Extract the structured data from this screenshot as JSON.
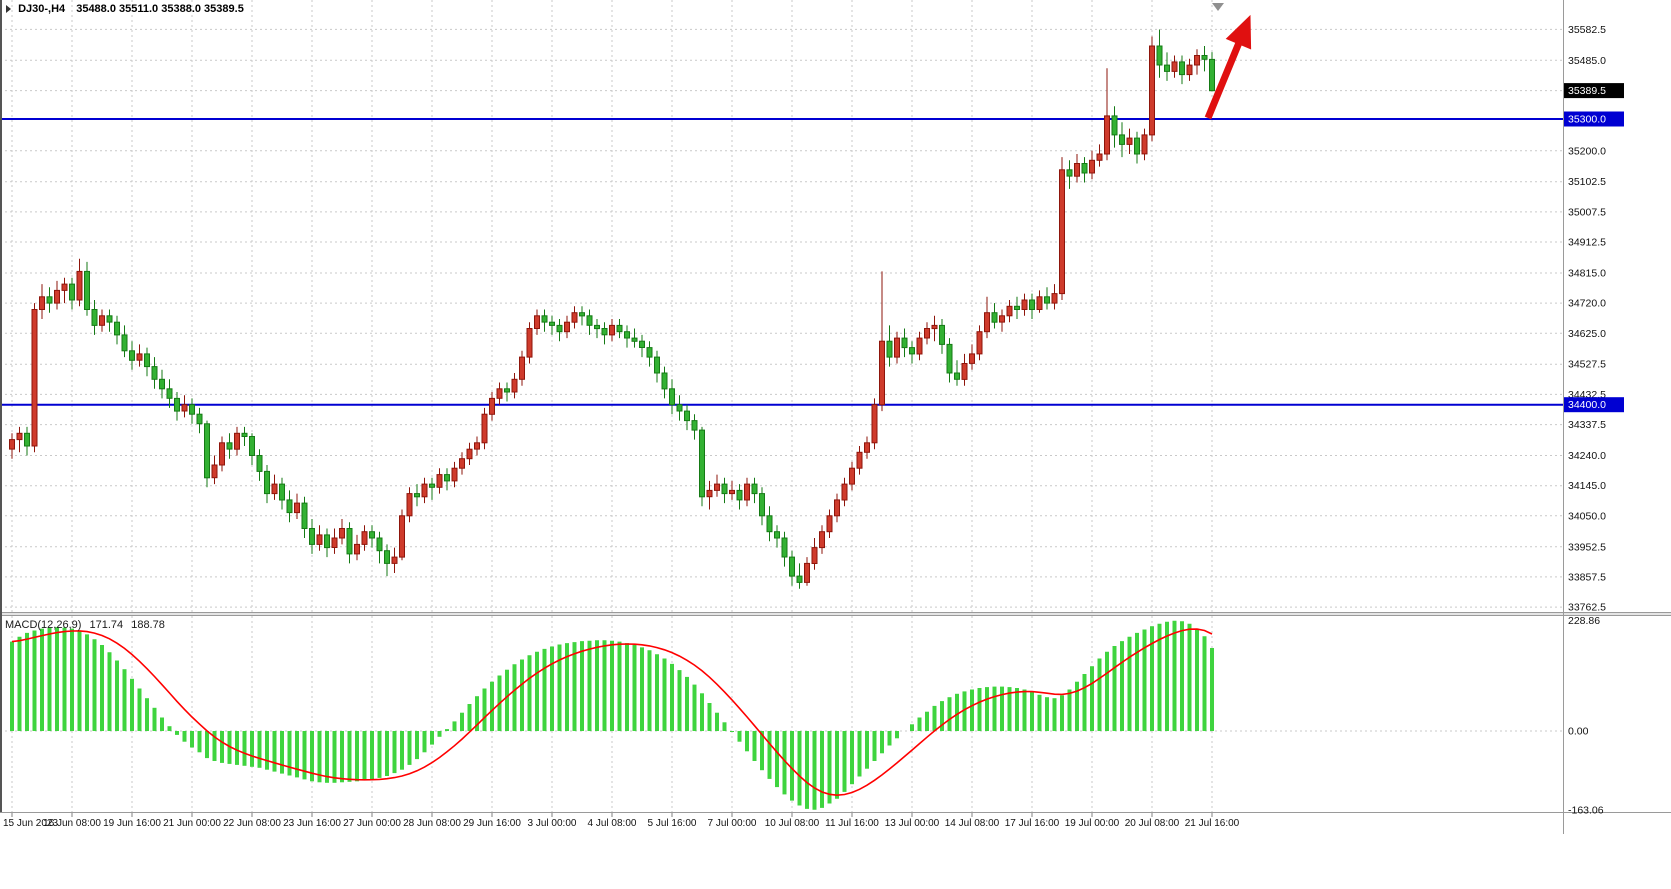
{
  "header": {
    "symbol_period": "DJ30-,H4",
    "ohlc_values": "35488.0 35511.0 35388.0 35389.5"
  },
  "macd_panel": {
    "label": "MACD(12,26,9)",
    "value_main": "171.74",
    "value_signal": "188.78"
  },
  "price_axis": {
    "current": {
      "price": 35389.5,
      "text": "35389.5",
      "bg": "#000000"
    }
  },
  "hlines": [
    {
      "price": 35300.0,
      "label": "35300.0",
      "color": "#0000d2"
    },
    {
      "price": 34400.0,
      "label": "34400.0",
      "color": "#0000d2"
    }
  ],
  "colors": {
    "bg": "#ffffff",
    "grid": "#c9c9c9",
    "bull": "#cf3b2c",
    "bull_border": "#8e150b",
    "bear": "#33b133",
    "bear_border": "#157a15",
    "histogram": "#3fd43f",
    "signal": "#ff0000",
    "arrow": "#e01010",
    "axis_text": "#111111"
  },
  "chart_data": [
    {
      "type": "candlestick",
      "symbol": "DJ30-",
      "timeframe": "H4",
      "ylim": [
        33747,
        35675
      ],
      "grid_prices": [
        35582.5,
        35485.0,
        35389.5,
        35200.0,
        35102.5,
        35007.5,
        34912.5,
        34815.0,
        34720.0,
        34625.0,
        34527.5,
        34432.5,
        34337.5,
        34240.0,
        34145.0,
        34050.0,
        33952.5,
        33857.5,
        33762.5
      ],
      "x_labels": [
        {
          "text": "15 Jun 2023",
          "i": 0
        },
        {
          "text": "16 Jun 08:00",
          "i": 8
        },
        {
          "text": "19 Jun 16:00",
          "i": 16
        },
        {
          "text": "21 Jun 00:00",
          "i": 24
        },
        {
          "text": "22 Jun 08:00",
          "i": 32
        },
        {
          "text": "23 Jun 16:00",
          "i": 40
        },
        {
          "text": "27 Jun 00:00",
          "i": 48
        },
        {
          "text": "28 Jun 08:00",
          "i": 56
        },
        {
          "text": "29 Jun 16:00",
          "i": 64
        },
        {
          "text": "3 Jul 00:00",
          "i": 72
        },
        {
          "text": "4 Jul 08:00",
          "i": 80
        },
        {
          "text": "5 Jul 16:00",
          "i": 88
        },
        {
          "text": "7 Jul 00:00",
          "i": 96
        },
        {
          "text": "10 Jul 08:00",
          "i": 104
        },
        {
          "text": "11 Jul 16:00",
          "i": 112
        },
        {
          "text": "13 Jul 00:00",
          "i": 120
        },
        {
          "text": "14 Jul 08:00",
          "i": 128
        },
        {
          "text": "17 Jul 16:00",
          "i": 136
        },
        {
          "text": "19 Jul 00:00",
          "i": 144
        },
        {
          "text": "20 Jul 08:00",
          "i": 152
        },
        {
          "text": "21 Jul 16:00",
          "i": 160
        }
      ],
      "ohlc": [
        [
          34260,
          34310,
          34230,
          34290
        ],
        [
          34290,
          34330,
          34250,
          34310
        ],
        [
          34310,
          34330,
          34240,
          34270
        ],
        [
          34270,
          34720,
          34250,
          34700
        ],
        [
          34700,
          34780,
          34670,
          34740
        ],
        [
          34740,
          34770,
          34690,
          34720
        ],
        [
          34720,
          34790,
          34700,
          34760
        ],
        [
          34760,
          34800,
          34720,
          34780
        ],
        [
          34780,
          34800,
          34700,
          34730
        ],
        [
          34730,
          34860,
          34710,
          34820
        ],
        [
          34820,
          34850,
          34680,
          34700
        ],
        [
          34700,
          34730,
          34620,
          34650
        ],
        [
          34650,
          34700,
          34630,
          34680
        ],
        [
          34680,
          34700,
          34630,
          34660
        ],
        [
          34660,
          34680,
          34590,
          34620
        ],
        [
          34620,
          34650,
          34550,
          34570
        ],
        [
          34570,
          34600,
          34510,
          34540
        ],
        [
          34540,
          34590,
          34520,
          34560
        ],
        [
          34560,
          34580,
          34490,
          34520
        ],
        [
          34520,
          34550,
          34450,
          34480
        ],
        [
          34480,
          34510,
          34420,
          34450
        ],
        [
          34450,
          34480,
          34390,
          34420
        ],
        [
          34420,
          34440,
          34350,
          34380
        ],
        [
          34380,
          34430,
          34360,
          34400
        ],
        [
          34400,
          34420,
          34340,
          34370
        ],
        [
          34370,
          34390,
          34310,
          34340
        ],
        [
          34340,
          34350,
          34140,
          34170
        ],
        [
          34170,
          34240,
          34150,
          34210
        ],
        [
          34210,
          34300,
          34190,
          34280
        ],
        [
          34280,
          34310,
          34230,
          34260
        ],
        [
          34260,
          34330,
          34240,
          34310
        ],
        [
          34310,
          34330,
          34270,
          34300
        ],
        [
          34300,
          34310,
          34210,
          34240
        ],
        [
          34240,
          34260,
          34160,
          34190
        ],
        [
          34190,
          34210,
          34090,
          34120
        ],
        [
          34120,
          34180,
          34100,
          34150
        ],
        [
          34150,
          34170,
          34070,
          34100
        ],
        [
          34100,
          34130,
          34030,
          34060
        ],
        [
          34060,
          34120,
          34040,
          34090
        ],
        [
          34090,
          34110,
          33980,
          34010
        ],
        [
          34010,
          34040,
          33930,
          33960
        ],
        [
          33960,
          34020,
          33940,
          33990
        ],
        [
          33990,
          34010,
          33920,
          33950
        ],
        [
          33950,
          34010,
          33930,
          33980
        ],
        [
          33980,
          34040,
          33960,
          34010
        ],
        [
          34010,
          34030,
          33900,
          33930
        ],
        [
          33930,
          33990,
          33910,
          33960
        ],
        [
          33960,
          34020,
          33940,
          34000
        ],
        [
          34000,
          34020,
          33950,
          33980
        ],
        [
          33980,
          34000,
          33900,
          33940
        ],
        [
          33940,
          33960,
          33860,
          33900
        ],
        [
          33900,
          33950,
          33870,
          33920
        ],
        [
          33920,
          34070,
          33910,
          34050
        ],
        [
          34050,
          34140,
          34030,
          34120
        ],
        [
          34120,
          34150,
          34080,
          34110
        ],
        [
          34110,
          34170,
          34090,
          34150
        ],
        [
          34150,
          34170,
          34100,
          34140
        ],
        [
          34140,
          34200,
          34120,
          34180
        ],
        [
          34180,
          34200,
          34130,
          34160
        ],
        [
          34160,
          34220,
          34140,
          34200
        ],
        [
          34200,
          34250,
          34180,
          34230
        ],
        [
          34230,
          34280,
          34210,
          34260
        ],
        [
          34260,
          34300,
          34240,
          34280
        ],
        [
          34280,
          34390,
          34260,
          34370
        ],
        [
          34370,
          34440,
          34350,
          34420
        ],
        [
          34420,
          34470,
          34400,
          34450
        ],
        [
          34450,
          34470,
          34410,
          34440
        ],
        [
          34440,
          34500,
          34420,
          34480
        ],
        [
          34480,
          34570,
          34460,
          34550
        ],
        [
          34550,
          34660,
          34530,
          34640
        ],
        [
          34640,
          34700,
          34620,
          34680
        ],
        [
          34680,
          34700,
          34630,
          34660
        ],
        [
          34660,
          34680,
          34620,
          34650
        ],
        [
          34650,
          34670,
          34600,
          34630
        ],
        [
          34630,
          34680,
          34610,
          34660
        ],
        [
          34660,
          34710,
          34640,
          34690
        ],
        [
          34690,
          34710,
          34650,
          34680
        ],
        [
          34680,
          34700,
          34620,
          34650
        ],
        [
          34650,
          34670,
          34610,
          34640
        ],
        [
          34640,
          34660,
          34590,
          34620
        ],
        [
          34620,
          34670,
          34600,
          34650
        ],
        [
          34650,
          34670,
          34610,
          34630
        ],
        [
          34630,
          34650,
          34580,
          34610
        ],
        [
          34610,
          34640,
          34580,
          34600
        ],
        [
          34600,
          34620,
          34550,
          34580
        ],
        [
          34580,
          34600,
          34520,
          34550
        ],
        [
          34550,
          34570,
          34470,
          34500
        ],
        [
          34500,
          34520,
          34420,
          34450
        ],
        [
          34450,
          34480,
          34370,
          34400
        ],
        [
          34400,
          34430,
          34350,
          34380
        ],
        [
          34380,
          34400,
          34320,
          34350
        ],
        [
          34350,
          34370,
          34290,
          34320
        ],
        [
          34320,
          34330,
          34080,
          34110
        ],
        [
          34110,
          34160,
          34070,
          34130
        ],
        [
          34130,
          34180,
          34110,
          34150
        ],
        [
          34150,
          34170,
          34090,
          34120
        ],
        [
          34120,
          34160,
          34100,
          34130
        ],
        [
          34130,
          34150,
          34070,
          34100
        ],
        [
          34100,
          34170,
          34080,
          34150
        ],
        [
          34150,
          34170,
          34090,
          34120
        ],
        [
          34120,
          34140,
          34020,
          34050
        ],
        [
          34050,
          34080,
          33970,
          34000
        ],
        [
          34000,
          34020,
          33950,
          33980
        ],
        [
          33980,
          34000,
          33890,
          33920
        ],
        [
          33920,
          33940,
          33830,
          33860
        ],
        [
          33860,
          33900,
          33820,
          33840
        ],
        [
          33840,
          33920,
          33830,
          33900
        ],
        [
          33900,
          33980,
          33880,
          33950
        ],
        [
          33950,
          34020,
          33930,
          34000
        ],
        [
          34000,
          34070,
          33980,
          34050
        ],
        [
          34050,
          34120,
          34030,
          34100
        ],
        [
          34100,
          34170,
          34080,
          34150
        ],
        [
          34150,
          34220,
          34130,
          34200
        ],
        [
          34200,
          34270,
          34180,
          34250
        ],
        [
          34250,
          34300,
          34230,
          34280
        ],
        [
          34280,
          34420,
          34260,
          34400
        ],
        [
          34400,
          34820,
          34380,
          34600
        ],
        [
          34600,
          34650,
          34520,
          34550
        ],
        [
          34550,
          34630,
          34530,
          34610
        ],
        [
          34610,
          34640,
          34550,
          34580
        ],
        [
          34580,
          34600,
          34530,
          34560
        ],
        [
          34560,
          34630,
          34540,
          34610
        ],
        [
          34610,
          34660,
          34590,
          34640
        ],
        [
          34640,
          34680,
          34600,
          34650
        ],
        [
          34650,
          34670,
          34560,
          34590
        ],
        [
          34590,
          34610,
          34470,
          34500
        ],
        [
          34500,
          34540,
          34460,
          34480
        ],
        [
          34480,
          34560,
          34460,
          34530
        ],
        [
          34530,
          34590,
          34510,
          34560
        ],
        [
          34560,
          34650,
          34540,
          34630
        ],
        [
          34630,
          34740,
          34610,
          34690
        ],
        [
          34690,
          34720,
          34640,
          34660
        ],
        [
          34660,
          34700,
          34630,
          34680
        ],
        [
          34680,
          34730,
          34660,
          34710
        ],
        [
          34710,
          34740,
          34670,
          34700
        ],
        [
          34700,
          34750,
          34680,
          34730
        ],
        [
          34730,
          34750,
          34670,
          34700
        ],
        [
          34700,
          34760,
          34690,
          34740
        ],
        [
          34740,
          34770,
          34700,
          34720
        ],
        [
          34720,
          34780,
          34700,
          34750
        ],
        [
          34750,
          35180,
          34730,
          35140
        ],
        [
          35140,
          35170,
          35080,
          35120
        ],
        [
          35120,
          35190,
          35100,
          35160
        ],
        [
          35160,
          35180,
          35100,
          35130
        ],
        [
          35130,
          35200,
          35110,
          35170
        ],
        [
          35170,
          35220,
          35150,
          35190
        ],
        [
          35190,
          35460,
          35170,
          35310
        ],
        [
          35310,
          35340,
          35210,
          35250
        ],
        [
          35250,
          35290,
          35180,
          35220
        ],
        [
          35220,
          35270,
          35190,
          35240
        ],
        [
          35240,
          35260,
          35160,
          35190
        ],
        [
          35190,
          35270,
          35170,
          35250
        ],
        [
          35250,
          35560,
          35230,
          35530
        ],
        [
          35530,
          35582,
          35430,
          35470
        ],
        [
          35470,
          35510,
          35420,
          35450
        ],
        [
          35450,
          35500,
          35430,
          35480
        ],
        [
          35480,
          35500,
          35410,
          35440
        ],
        [
          35440,
          35490,
          35420,
          35470
        ],
        [
          35470,
          35520,
          35440,
          35500
        ],
        [
          35500,
          35530,
          35450,
          35488
        ],
        [
          35488,
          35511,
          35388,
          35389.5
        ]
      ]
    },
    {
      "type": "bar",
      "name": "MACD(12,26,9)",
      "ylim": [
        -167.5,
        238
      ],
      "levels": [
        228.86,
        0,
        -163.06
      ],
      "signal_rule": "EMA(9) of values",
      "last": {
        "main": 171.74,
        "signal": 188.78
      },
      "values": [
        185,
        195,
        203,
        208,
        212,
        214,
        215,
        214,
        212,
        208,
        200,
        190,
        178,
        163,
        146,
        128,
        108,
        88,
        68,
        48,
        28,
        10,
        -8,
        -22,
        -34,
        -44,
        -56,
        -62,
        -66,
        -68,
        -70,
        -72,
        -74,
        -76,
        -80,
        -84,
        -88,
        -92,
        -96,
        -100,
        -104,
        -106,
        -107,
        -107,
        -106,
        -105,
        -104,
        -102,
        -100,
        -97,
        -93,
        -87,
        -80,
        -70,
        -58,
        -44,
        -28,
        -12,
        4,
        20,
        38,
        56,
        72,
        88,
        102,
        115,
        127,
        138,
        148,
        157,
        164,
        170,
        175,
        179,
        182,
        184,
        186,
        187,
        188,
        188,
        187,
        185,
        182,
        178,
        173,
        167,
        159,
        150,
        139,
        126,
        112,
        96,
        78,
        58,
        38,
        18,
        -2,
        -22,
        -42,
        -62,
        -81,
        -99,
        -116,
        -131,
        -144,
        -154,
        -161,
        -163,
        -159,
        -150,
        -140,
        -126,
        -110,
        -94,
        -78,
        -62,
        -46,
        -30,
        -15,
        0,
        14,
        28,
        40,
        52,
        62,
        70,
        77,
        82,
        86,
        89,
        91,
        92,
        92,
        91,
        89,
        86,
        81,
        75,
        70,
        68,
        74,
        86,
        102,
        118,
        134,
        150,
        164,
        176,
        186,
        195,
        203,
        210,
        217,
        222,
        226,
        228,
        227,
        222,
        212,
        196,
        171.74
      ]
    }
  ]
}
